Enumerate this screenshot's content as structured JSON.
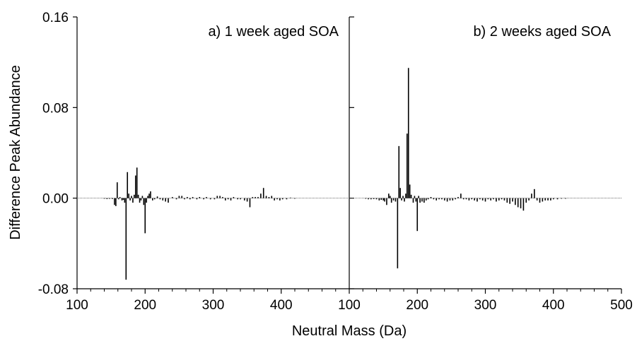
{
  "chart_data": {
    "type": "bar",
    "ylabel": "Difference Peak Abundance",
    "xlabel": "Neutral Mass (Da)",
    "ylim": [
      -0.08,
      0.16
    ],
    "yticks": [
      "-0.08",
      "0.00",
      "0.08",
      "0.16"
    ],
    "grid": false,
    "panels": [
      {
        "title": "a) 1 week aged SOA",
        "xlim": [
          100,
          500
        ],
        "xticks": [
          "100",
          "200",
          "300",
          "400"
        ],
        "points": [
          [
            140,
            -0.0005
          ],
          [
            144,
            -0.0008
          ],
          [
            148,
            -0.0006
          ],
          [
            152,
            -0.0007
          ],
          [
            155,
            -0.006
          ],
          [
            157,
            -0.007
          ],
          [
            159,
            0.014
          ],
          [
            161,
            -0.001
          ],
          [
            163,
            0.001
          ],
          [
            166,
            -0.002
          ],
          [
            168,
            -0.0015
          ],
          [
            170,
            -0.004
          ],
          [
            172,
            -0.072
          ],
          [
            174,
            0.023
          ],
          [
            176,
            0.004
          ],
          [
            178,
            -0.002
          ],
          [
            180,
            0.002
          ],
          [
            182,
            -0.004
          ],
          [
            184,
            0.003
          ],
          [
            186,
            0.02
          ],
          [
            188,
            0.027
          ],
          [
            190,
            0.003
          ],
          [
            192,
            -0.004
          ],
          [
            194,
            -0.002
          ],
          [
            196,
            0.002
          ],
          [
            198,
            -0.006
          ],
          [
            200,
            -0.031
          ],
          [
            202,
            -0.004
          ],
          [
            204,
            0.002
          ],
          [
            206,
            0.004
          ],
          [
            208,
            0.006
          ],
          [
            211,
            -0.002
          ],
          [
            214,
            -0.001
          ],
          [
            218,
            0.0015
          ],
          [
            222,
            -0.001
          ],
          [
            226,
            -0.002
          ],
          [
            230,
            -0.003
          ],
          [
            234,
            -0.004
          ],
          [
            240,
            0.001
          ],
          [
            246,
            -0.001
          ],
          [
            250,
            0.002
          ],
          [
            254,
            0.002
          ],
          [
            258,
            -0.001
          ],
          [
            262,
            0.001
          ],
          [
            266,
            -0.001
          ],
          [
            270,
            0.001
          ],
          [
            276,
            -0.001
          ],
          [
            280,
            0.001
          ],
          [
            286,
            -0.001
          ],
          [
            290,
            0.001
          ],
          [
            296,
            -0.001
          ],
          [
            302,
            -0.001
          ],
          [
            306,
            0.002
          ],
          [
            310,
            0.002
          ],
          [
            314,
            0.001
          ],
          [
            318,
            -0.002
          ],
          [
            322,
            -0.001
          ],
          [
            326,
            -0.002
          ],
          [
            330,
            0.001
          ],
          [
            336,
            -0.001
          ],
          [
            340,
            -0.001
          ],
          [
            346,
            -0.002
          ],
          [
            350,
            -0.003
          ],
          [
            354,
            -0.008
          ],
          [
            358,
            0.001
          ],
          [
            362,
            0.001
          ],
          [
            366,
            0.001
          ],
          [
            370,
            0.004
          ],
          [
            374,
            0.009
          ],
          [
            378,
            0.002
          ],
          [
            382,
            0.001
          ],
          [
            386,
            0.002
          ],
          [
            390,
            -0.002
          ],
          [
            394,
            -0.001
          ],
          [
            398,
            -0.002
          ],
          [
            402,
            -0.001
          ],
          [
            408,
            -0.001
          ],
          [
            414,
            0.0005
          ],
          [
            420,
            -0.0005
          ]
        ]
      },
      {
        "title": "b) 2 weeks aged SOA",
        "xlim": [
          100,
          500
        ],
        "xticks": [
          "100",
          "200",
          "300",
          "400",
          "500"
        ],
        "points": [
          [
            124,
            -0.0005
          ],
          [
            128,
            -0.001
          ],
          [
            132,
            -0.001
          ],
          [
            136,
            -0.0008
          ],
          [
            140,
            -0.001
          ],
          [
            144,
            -0.002
          ],
          [
            147,
            -0.0015
          ],
          [
            150,
            -0.002
          ],
          [
            152,
            -0.003
          ],
          [
            155,
            -0.006
          ],
          [
            158,
            0.004
          ],
          [
            160,
            0.002
          ],
          [
            162,
            -0.004
          ],
          [
            165,
            -0.002
          ],
          [
            168,
            -0.003
          ],
          [
            171,
            -0.062
          ],
          [
            173,
            0.046
          ],
          [
            175,
            0.009
          ],
          [
            177,
            -0.002
          ],
          [
            179,
            0.002
          ],
          [
            181,
            -0.003
          ],
          [
            183,
            0.004
          ],
          [
            185,
            0.057
          ],
          [
            187,
            0.115
          ],
          [
            189,
            0.012
          ],
          [
            191,
            0.003
          ],
          [
            194,
            -0.004
          ],
          [
            196,
            0.002
          ],
          [
            198,
            -0.003
          ],
          [
            200,
            -0.029
          ],
          [
            202,
            0.002
          ],
          [
            204,
            -0.004
          ],
          [
            207,
            -0.003
          ],
          [
            210,
            -0.004
          ],
          [
            213,
            -0.002
          ],
          [
            216,
            -0.001
          ],
          [
            220,
            0.001
          ],
          [
            224,
            -0.001
          ],
          [
            228,
            -0.002
          ],
          [
            232,
            -0.001
          ],
          [
            236,
            -0.001
          ],
          [
            240,
            -0.002
          ],
          [
            244,
            -0.003
          ],
          [
            248,
            -0.002
          ],
          [
            252,
            -0.002
          ],
          [
            256,
            -0.001
          ],
          [
            260,
            0.001
          ],
          [
            264,
            0.004
          ],
          [
            268,
            -0.001
          ],
          [
            272,
            -0.001
          ],
          [
            276,
            -0.002
          ],
          [
            280,
            -0.001
          ],
          [
            284,
            -0.002
          ],
          [
            288,
            -0.003
          ],
          [
            292,
            -0.001
          ],
          [
            296,
            -0.002
          ],
          [
            300,
            -0.003
          ],
          [
            304,
            -0.001
          ],
          [
            308,
            -0.002
          ],
          [
            312,
            -0.001
          ],
          [
            316,
            -0.003
          ],
          [
            320,
            -0.002
          ],
          [
            324,
            -0.001
          ],
          [
            328,
            -0.002
          ],
          [
            332,
            -0.004
          ],
          [
            336,
            -0.005
          ],
          [
            340,
            -0.003
          ],
          [
            344,
            -0.006
          ],
          [
            348,
            -0.008
          ],
          [
            352,
            -0.009
          ],
          [
            356,
            -0.011
          ],
          [
            360,
            -0.004
          ],
          [
            364,
            -0.002
          ],
          [
            368,
            0.004
          ],
          [
            372,
            0.008
          ],
          [
            376,
            -0.002
          ],
          [
            380,
            -0.004
          ],
          [
            384,
            -0.003
          ],
          [
            388,
            -0.002
          ],
          [
            392,
            -0.002
          ],
          [
            396,
            -0.002
          ],
          [
            400,
            -0.001
          ],
          [
            406,
            -0.001
          ],
          [
            412,
            -0.0005
          ],
          [
            418,
            -0.0005
          ]
        ]
      }
    ]
  }
}
